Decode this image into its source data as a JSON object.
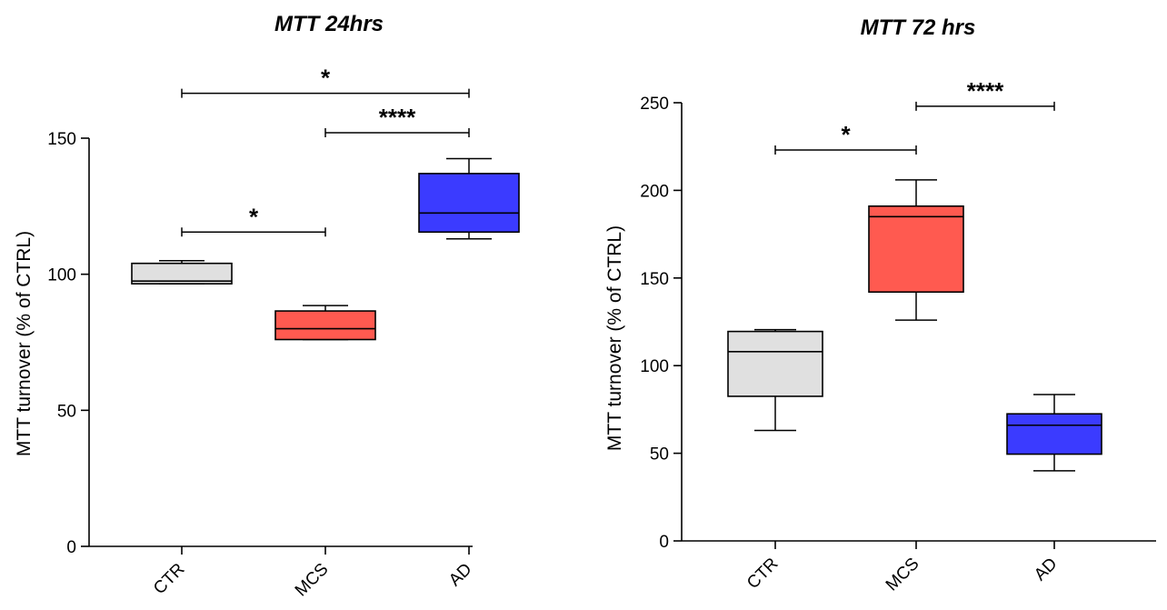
{
  "chart_data": [
    {
      "type": "box",
      "title": "MTT 24hrs",
      "ylabel": "MTT turnover (% of CTRL)",
      "xlabel": "",
      "ylim": [
        0,
        150
      ],
      "yticks": [
        0,
        50,
        100,
        150
      ],
      "categories": [
        "CTR",
        "MCS",
        "AD"
      ],
      "boxes": [
        {
          "category": "CTR",
          "min": 96.5,
          "q1": 96.5,
          "median": 97.5,
          "q3": 104,
          "max": 105,
          "color": "#e0e0e0"
        },
        {
          "category": "MCS",
          "min": 76,
          "q1": 76,
          "median": 80,
          "q3": 86.5,
          "max": 88.5,
          "color": "#ff5a50"
        },
        {
          "category": "AD",
          "min": 113,
          "q1": 115.5,
          "median": 122.5,
          "q3": 137,
          "max": 142.5,
          "color": "#3b3bff"
        }
      ],
      "significance": [
        {
          "from": "CTR",
          "to": "MCS",
          "label": "*",
          "level": 115.5
        },
        {
          "from": "MCS",
          "to": "AD",
          "label": "****",
          "level": 152
        },
        {
          "from": "CTR",
          "to": "AD",
          "label": "*",
          "level": 166.5
        }
      ]
    },
    {
      "type": "box",
      "title": "MTT 72 hrs",
      "ylabel": "MTT turnover (% of CTRL)",
      "xlabel": "",
      "ylim": [
        0,
        250
      ],
      "yticks": [
        0,
        50,
        100,
        150,
        200,
        250
      ],
      "categories": [
        "CTR",
        "MCS",
        "AD"
      ],
      "boxes": [
        {
          "category": "CTR",
          "min": 63,
          "q1": 82.5,
          "median": 108,
          "q3": 119.5,
          "max": 120.5,
          "color": "#e0e0e0"
        },
        {
          "category": "MCS",
          "min": 126,
          "q1": 142,
          "median": 185,
          "q3": 191,
          "max": 206,
          "color": "#ff5a50"
        },
        {
          "category": "AD",
          "min": 40,
          "q1": 49.5,
          "median": 66,
          "q3": 72.5,
          "max": 83.5,
          "color": "#3b3bff"
        }
      ],
      "significance": [
        {
          "from": "CTR",
          "to": "MCS",
          "label": "*",
          "level": 223
        },
        {
          "from": "MCS",
          "to": "AD",
          "label": "****",
          "level": 248
        }
      ]
    }
  ]
}
